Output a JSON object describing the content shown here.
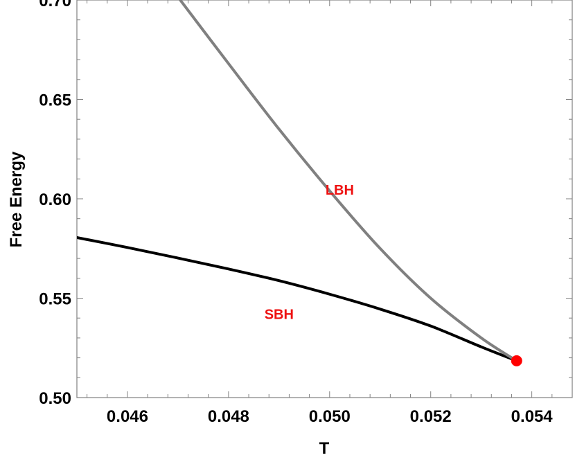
{
  "chart_data": {
    "type": "line",
    "title": "",
    "xlabel": "T",
    "ylabel": "Free Energy",
    "xlim": [
      0.045,
      0.0548
    ],
    "ylim": [
      0.5,
      0.7
    ],
    "x_ticks": [
      0.046,
      0.048,
      0.05,
      0.052,
      0.054
    ],
    "x_tick_labels": [
      "0.046",
      "0.048",
      "0.050",
      "0.052",
      "0.054"
    ],
    "y_ticks": [
      0.5,
      0.55,
      0.6,
      0.65,
      0.7
    ],
    "y_tick_labels": [
      "0.50",
      "0.55",
      "0.60",
      "0.65",
      "0.70"
    ],
    "grid": false,
    "series": [
      {
        "color": "#000000",
        "x": [
          0.045,
          0.046,
          0.047,
          0.048,
          0.049,
          0.05,
          0.051,
          0.052,
          0.053,
          0.0537
        ],
        "y": [
          0.5805,
          0.5755,
          0.5702,
          0.5647,
          0.5588,
          0.552,
          0.5445,
          0.536,
          0.5255,
          0.5185
        ]
      },
      {
        "color": "#808080",
        "x": [
          0.047,
          0.048,
          0.049,
          0.05,
          0.051,
          0.052,
          0.053,
          0.0537
        ],
        "y": [
          0.7015,
          0.668,
          0.635,
          0.604,
          0.575,
          0.55,
          0.53,
          0.5185
        ]
      }
    ],
    "critical_point": {
      "x": 0.0537,
      "y": 0.5185,
      "color": "#ff0000"
    },
    "annotations": [
      {
        "text": "LBH",
        "x": 0.0502,
        "y": 0.6045,
        "color": "#ee1111"
      },
      {
        "text": "SBH",
        "x": 0.049,
        "y": 0.542,
        "color": "#ee1111"
      }
    ]
  }
}
